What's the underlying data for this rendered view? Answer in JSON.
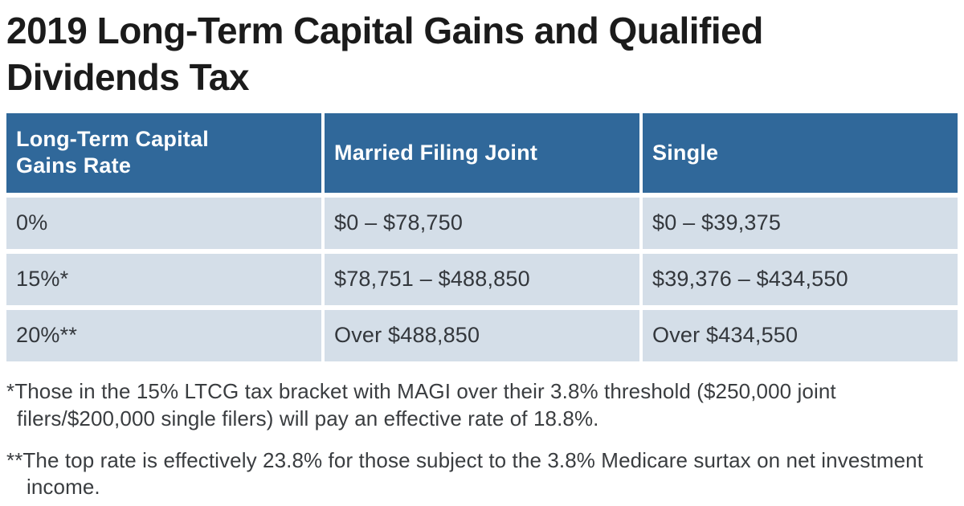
{
  "title": "2019 Long-Term Capital Gains and Qualified Dividends Tax",
  "table": {
    "headers": [
      "Long-Term Capital Gains Rate",
      "Married Filing Joint",
      "Single"
    ],
    "rows": [
      [
        "0%",
        "$0 – $78,750",
        "$0 – $39,375"
      ],
      [
        "15%*",
        "$78,751 – $488,850",
        "$39,376 – $434,550"
      ],
      [
        "20%**",
        "Over $488,850",
        "Over $434,550"
      ]
    ]
  },
  "footnotes": [
    "*Those in the 15% LTCG tax bracket with MAGI over their 3.8% threshold ($250,000 joint filers/$200,000 single filers) will pay an effective rate of 18.8%.",
    "**The top rate is effectively 23.8% for those subject to the 3.8% Medicare surtax on net investment income."
  ],
  "colors": {
    "header_background": "#30689A",
    "header_text": "#FFFFFF",
    "row_background": "#D4DEE8",
    "cell_text": "#33373C",
    "title_text": "#1B1B1B"
  },
  "chart_data": {
    "type": "table",
    "title": "2019 Long-Term Capital Gains and Qualified Dividends Tax",
    "columns": [
      "Long-Term Capital Gains Rate",
      "Married Filing Joint",
      "Single"
    ],
    "rows": [
      {
        "rate": "0%",
        "married_filing_joint": "$0 – $78,750",
        "single": "$0 – $39,375"
      },
      {
        "rate": "15%*",
        "married_filing_joint": "$78,751 – $488,850",
        "single": "$39,376 – $434,550"
      },
      {
        "rate": "20%**",
        "married_filing_joint": "Over $488,850",
        "single": "Over $434,550"
      }
    ],
    "footnotes": [
      "*Those in the 15% LTCG tax bracket with MAGI over their 3.8% threshold ($250,000 joint filers/$200,000 single filers) will pay an effective rate of 18.8%.",
      "**The top rate is effectively 23.8% for those subject to the 3.8% Medicare surtax on net investment income."
    ]
  }
}
